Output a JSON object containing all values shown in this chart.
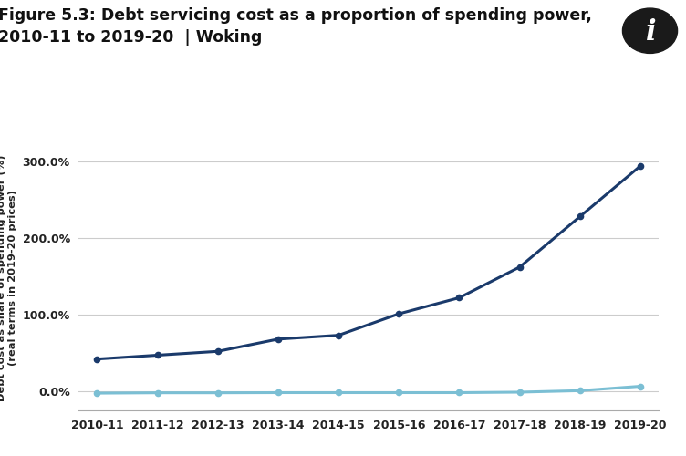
{
  "title_line1": "igure 5.3: Debt servicing cost as a proportion of spending power,",
  "title_line2": "010-11 to 2019-20  | Woking",
  "ylabel_line1": "Debt cost as share of spending power (%)",
  "ylabel_line2": "(real terms in 2019-20 prices)",
  "years": [
    "2010-11",
    "2011-12",
    "2012-13",
    "2013-14",
    "2014-15",
    "2015-16",
    "2016-17",
    "2017-18",
    "2018-19",
    "2019-20"
  ],
  "woking": [
    42.0,
    47.0,
    52.0,
    68.0,
    73.0,
    101.0,
    122.0,
    162.0,
    228.0,
    294.0
  ],
  "national": [
    -2.5,
    -2.0,
    -2.0,
    -1.8,
    -1.8,
    -1.8,
    -1.8,
    -1.2,
    0.8,
    6.5
  ],
  "woking_color": "#1a3a6b",
  "national_color": "#7bbfd4",
  "background_color": "#ffffff",
  "grid_color": "#cccccc",
  "ylim": [
    -25,
    320
  ],
  "yticks": [
    0.0,
    100.0,
    200.0,
    300.0
  ],
  "ytick_labels": [
    "0.0%",
    "100.0%",
    "200.0%",
    "300.0%"
  ],
  "title_fontsize": 12.5,
  "axis_fontsize": 9,
  "marker_size": 4.5,
  "line_width": 2.2
}
